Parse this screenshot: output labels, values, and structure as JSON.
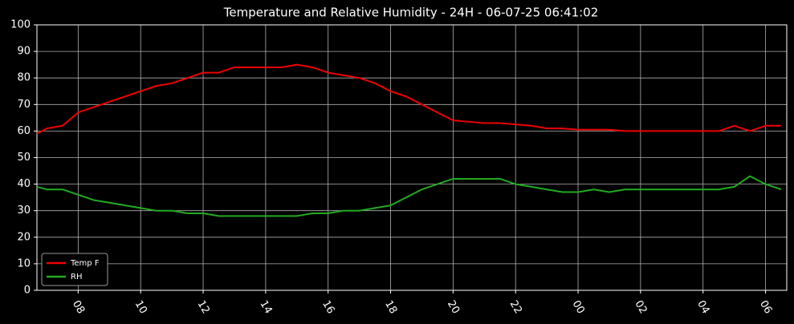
{
  "chart_data": {
    "type": "line",
    "title": "Temperature and Relative Humidity - 24H - 06-07-25 06:41:02",
    "x": [
      6.68,
      7,
      7.5,
      8,
      8.5,
      9,
      9.5,
      10,
      10.5,
      11,
      11.5,
      12,
      12.5,
      13,
      13.5,
      14,
      14.5,
      15,
      15.5,
      16,
      16.5,
      17,
      17.5,
      18,
      18.5,
      19,
      19.5,
      20,
      20.5,
      21,
      21.5,
      22,
      22.5,
      23,
      23.5,
      24,
      24.5,
      25,
      25.5,
      26,
      26.5,
      27,
      27.5,
      28,
      28.5,
      29,
      29.5,
      30,
      30.5
    ],
    "series": [
      {
        "name": "Temp F",
        "color": "#ee0000",
        "values": [
          59,
          61,
          62,
          67,
          69,
          71,
          73,
          75,
          77,
          78,
          80,
          82,
          82,
          84,
          84,
          84,
          84,
          85,
          84,
          82,
          81,
          80,
          78,
          75,
          73,
          70,
          67,
          64,
          63.5,
          63,
          63,
          62.5,
          62,
          61,
          61,
          60.5,
          60.5,
          60.5,
          60,
          60,
          60,
          60,
          60,
          60,
          60,
          62,
          60,
          62,
          62
        ]
      },
      {
        "name": "RH",
        "color": "#22aa22",
        "values": [
          39,
          38,
          38,
          36,
          34,
          33,
          32,
          31,
          30,
          30,
          29,
          29,
          28,
          28,
          28,
          28,
          28,
          28,
          29,
          29,
          30,
          30,
          31,
          32,
          35,
          38,
          40,
          42,
          42,
          42,
          42,
          40,
          39,
          38,
          37,
          37,
          38,
          37,
          38,
          38,
          38,
          38,
          38,
          38,
          38,
          39,
          43,
          40,
          38
        ]
      }
    ],
    "xlim": [
      6.68,
      30.68
    ],
    "xticks": [
      {
        "value": 8,
        "label": "08"
      },
      10,
      12,
      14,
      16,
      18,
      20,
      22,
      {
        "value": 24,
        "label": "00"
      },
      {
        "value": 26,
        "label": "02"
      },
      {
        "value": 28,
        "label": "04"
      },
      {
        "value": 30,
        "label": "06"
      }
    ],
    "ylim": [
      0,
      100
    ],
    "yticks": [
      0,
      10,
      20,
      30,
      40,
      50,
      60,
      70,
      80,
      90,
      100
    ],
    "grid": true,
    "legend": "lower left"
  }
}
